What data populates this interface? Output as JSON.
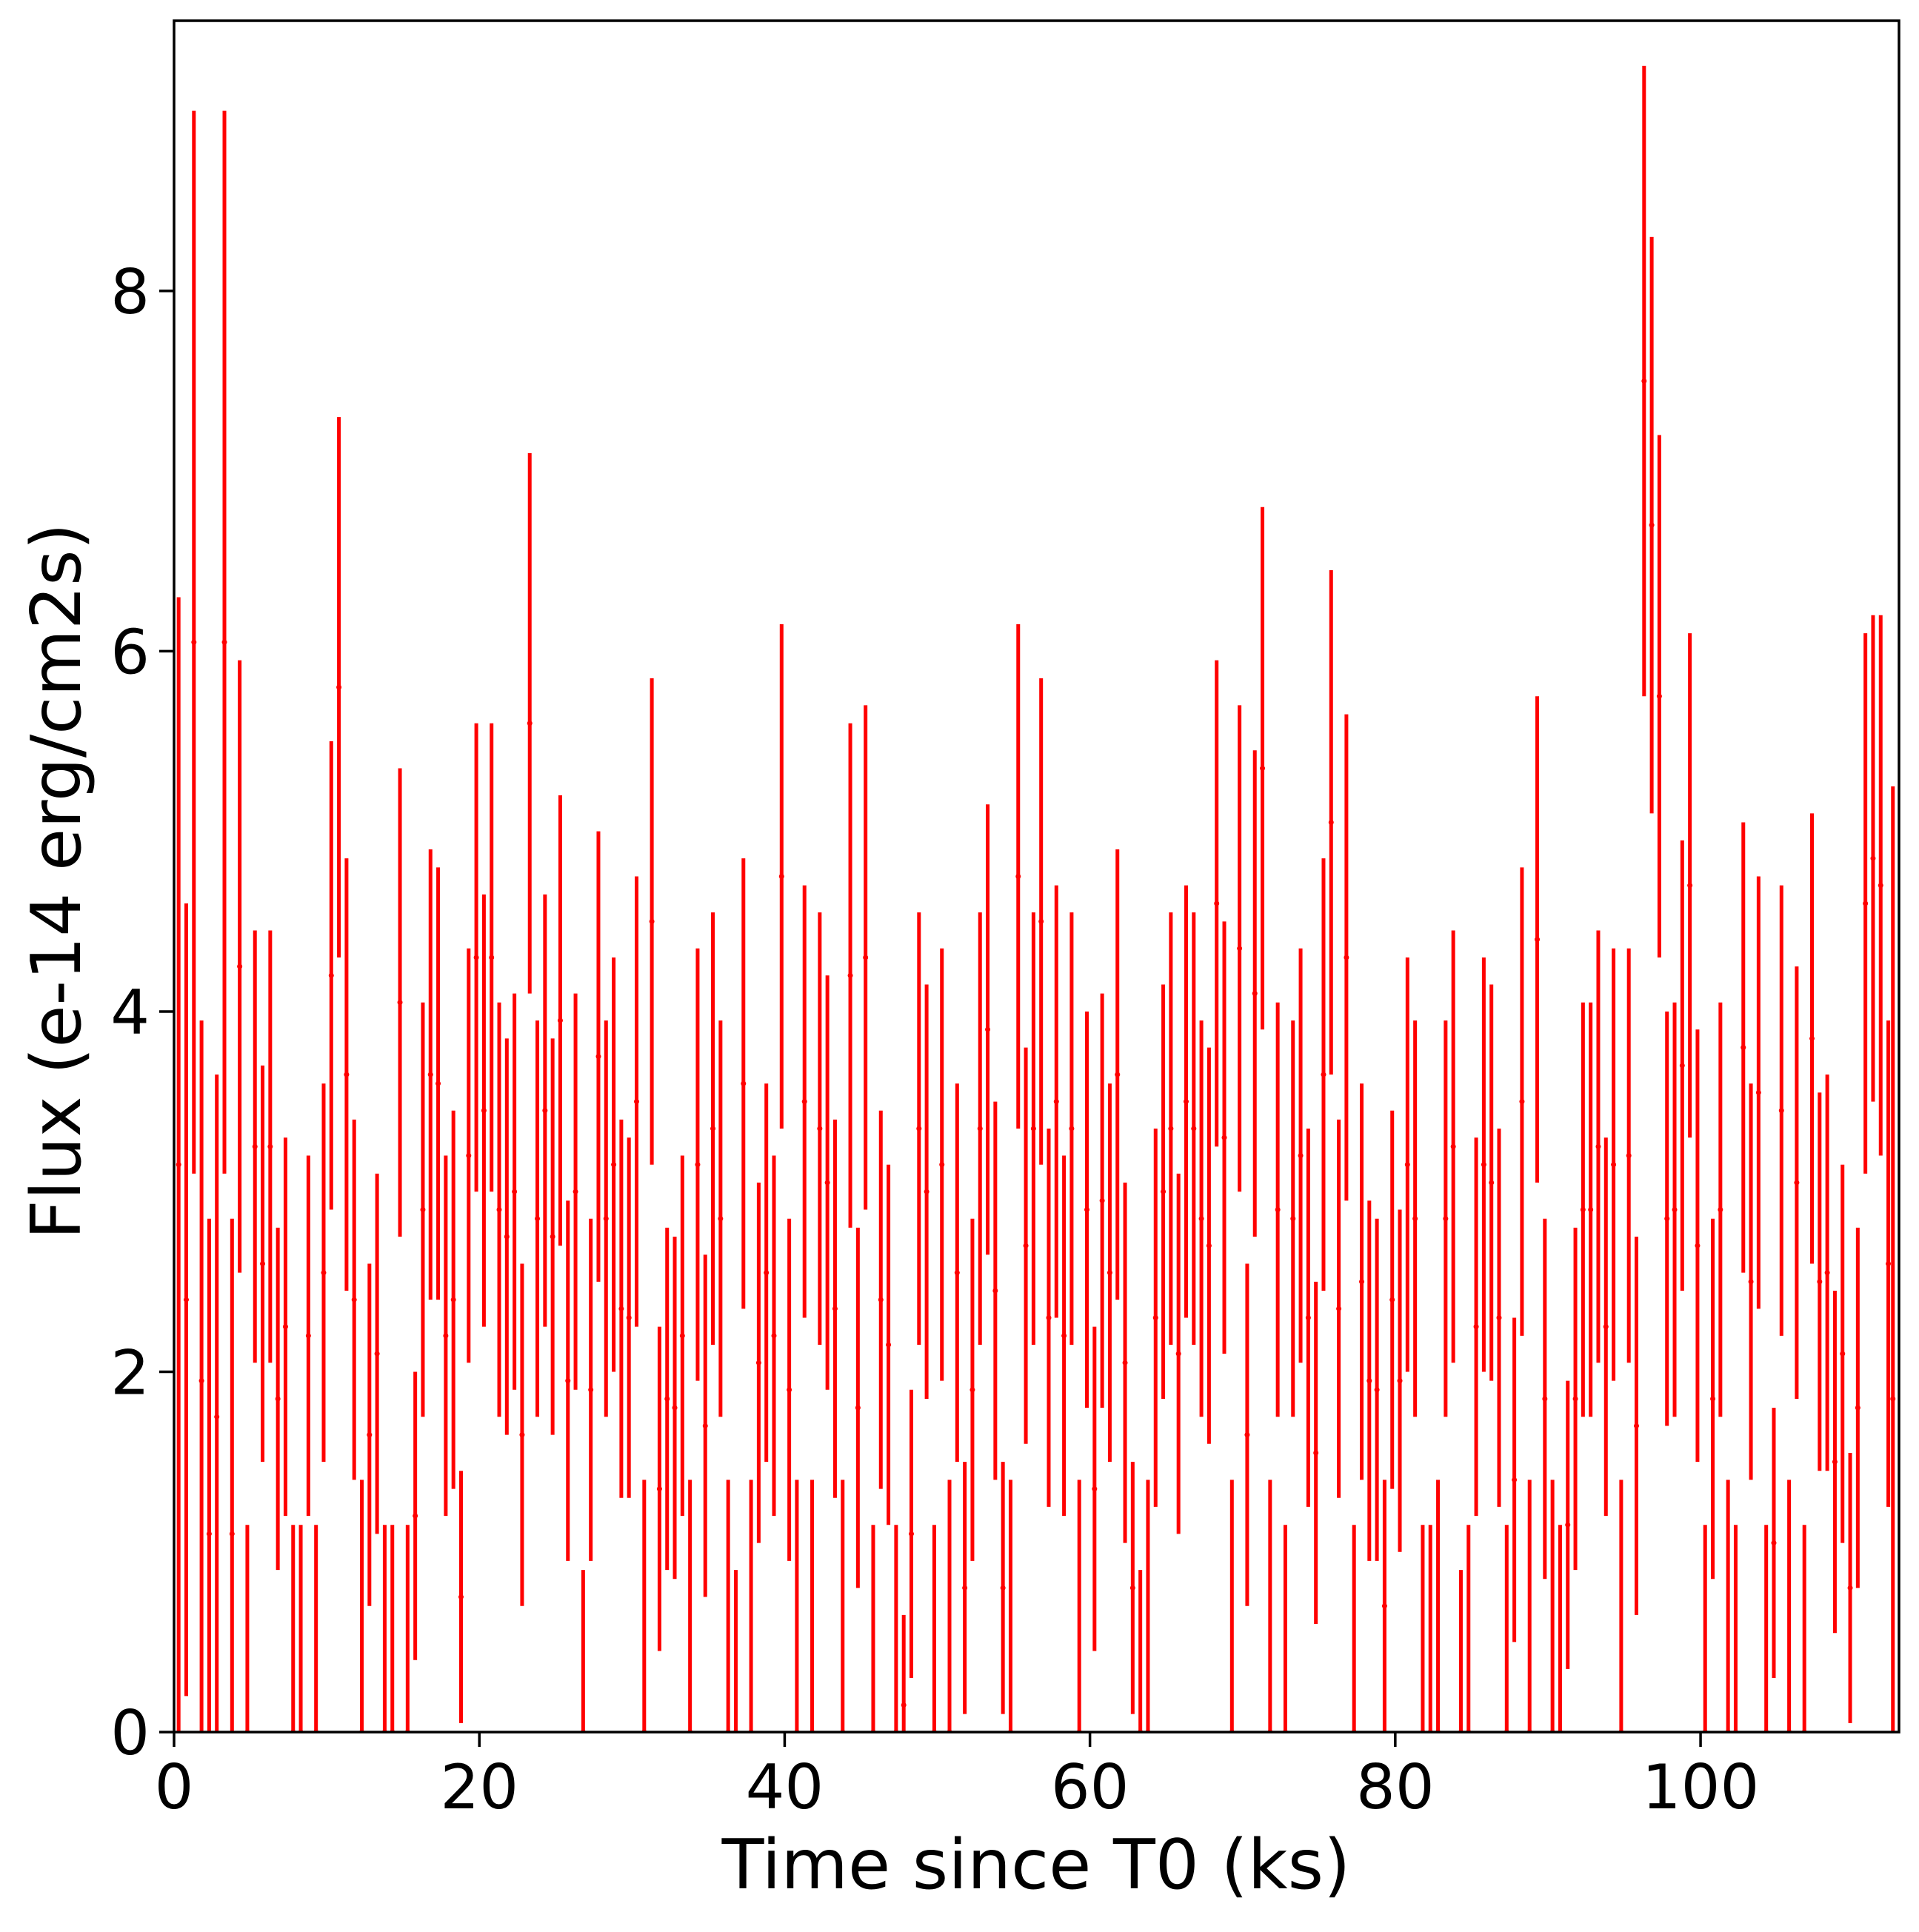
{
  "chart_data": {
    "type": "errorbar",
    "xlabel": "Time since T0 (ks)",
    "ylabel": "Flux (e-14 erg/cm2s)",
    "xlim": [
      0,
      113
    ],
    "ylim": [
      0,
      9.5
    ],
    "xticks": [
      0,
      20,
      40,
      60,
      80,
      100
    ],
    "yticks": [
      0,
      2,
      4,
      6,
      8
    ],
    "grid": false,
    "series": [
      {
        "color": "#ff0000",
        "x": [
          0.3,
          0.8,
          1.3,
          1.8,
          2.3,
          2.8,
          3.3,
          3.8,
          4.3,
          4.8,
          5.3,
          5.8,
          6.3,
          6.8,
          7.3,
          7.8,
          8.3,
          8.8,
          9.3,
          9.8,
          10.3,
          10.8,
          11.3,
          11.8,
          12.3,
          12.8,
          13.3,
          13.8,
          14.3,
          14.8,
          15.3,
          15.8,
          16.3,
          16.8,
          17.3,
          17.8,
          18.3,
          18.8,
          19.3,
          19.8,
          20.3,
          20.8,
          21.3,
          21.8,
          22.3,
          22.8,
          23.3,
          23.8,
          24.3,
          24.8,
          25.3,
          25.8,
          26.3,
          26.8,
          27.3,
          27.8,
          28.3,
          28.8,
          29.3,
          29.8,
          30.3,
          30.8,
          31.3,
          31.8,
          32.3,
          32.8,
          33.3,
          33.8,
          34.3,
          34.8,
          35.3,
          35.8,
          36.3,
          36.8,
          37.3,
          37.8,
          38.3,
          38.8,
          39.3,
          39.8,
          40.3,
          40.8,
          41.3,
          41.8,
          42.3,
          42.8,
          43.3,
          43.8,
          44.3,
          44.8,
          45.3,
          45.8,
          46.3,
          46.8,
          47.3,
          47.8,
          48.3,
          48.8,
          49.3,
          49.8,
          50.3,
          50.8,
          51.3,
          51.8,
          52.3,
          52.8,
          53.3,
          53.8,
          54.3,
          54.8,
          55.3,
          55.8,
          56.3,
          56.8,
          57.3,
          57.8,
          58.3,
          58.8,
          59.3,
          59.8,
          60.3,
          60.8,
          61.3,
          61.8,
          62.3,
          62.8,
          63.3,
          63.8,
          64.3,
          64.8,
          65.3,
          65.8,
          66.3,
          66.8,
          67.3,
          67.8,
          68.3,
          68.8,
          69.3,
          69.8,
          70.3,
          70.8,
          71.3,
          71.8,
          72.3,
          72.8,
          73.3,
          73.8,
          74.3,
          74.8,
          75.3,
          75.8,
          76.3,
          76.8,
          77.3,
          77.8,
          78.3,
          78.8,
          79.3,
          79.8,
          80.3,
          80.8,
          81.3,
          81.8,
          82.3,
          82.8,
          83.3,
          83.8,
          84.3,
          84.8,
          85.3,
          85.8,
          86.3,
          86.8,
          87.3,
          87.8,
          88.3,
          88.8,
          89.3,
          89.8,
          90.3,
          90.8,
          91.3,
          91.8,
          92.3,
          92.8,
          93.3,
          93.8,
          94.3,
          94.8,
          95.3,
          95.8,
          96.3,
          96.8,
          97.3,
          97.8,
          98.3,
          98.8,
          99.3,
          99.8,
          100.3,
          100.8,
          101.3,
          101.8,
          102.3,
          102.8,
          103.3,
          103.8,
          104.3,
          104.8,
          105.3,
          105.8,
          106.3,
          106.8,
          107.3,
          107.8,
          108.3,
          108.8,
          109.3,
          109.8,
          110.3,
          110.8,
          111.3,
          111.8,
          112.3,
          112.6
        ],
        "values": [
          3.15,
          2.4,
          6.05,
          1.95,
          1.1,
          1.75,
          6.05,
          1.1,
          4.25,
          0,
          3.25,
          2.6,
          3.25,
          1.85,
          2.25,
          0,
          0,
          2.2,
          0,
          2.55,
          4.2,
          5.8,
          3.65,
          2.4,
          0,
          1.65,
          2.1,
          0,
          0,
          4.05,
          0,
          1.2,
          2.9,
          3.65,
          3.6,
          2.2,
          2.4,
          0.75,
          3.2,
          4.3,
          3.45,
          4.3,
          2.9,
          2.75,
          3.0,
          1.65,
          5.6,
          2.85,
          3.45,
          2.75,
          3.95,
          1.95,
          3.0,
          0,
          1.9,
          3.75,
          2.85,
          3.15,
          2.35,
          2.3,
          3.5,
          0,
          4.5,
          1.35,
          1.85,
          1.8,
          2.2,
          0,
          3.15,
          1.7,
          3.35,
          2.85,
          0,
          0,
          3.6,
          0,
          2.05,
          2.55,
          2.2,
          4.75,
          1.9,
          0,
          3.5,
          0,
          3.35,
          3.05,
          2.35,
          0,
          4.2,
          1.8,
          4.3,
          0,
          2.4,
          2.15,
          0,
          0.15,
          1.1,
          3.35,
          3.0,
          0,
          3.15,
          0,
          2.55,
          0.8,
          1.9,
          3.35,
          3.9,
          2.45,
          0.8,
          0,
          4.75,
          2.7,
          3.35,
          4.5,
          2.3,
          3.5,
          2.2,
          3.35,
          0,
          2.9,
          1.35,
          2.95,
          2.55,
          3.65,
          2.05,
          0.8,
          0,
          0,
          2.3,
          3.0,
          3.35,
          2.1,
          3.5,
          3.35,
          2.85,
          2.7,
          4.6,
          3.3,
          0,
          4.35,
          1.65,
          4.1,
          5.35,
          0,
          2.9,
          0,
          2.85,
          3.2,
          2.3,
          1.55,
          3.65,
          5.05,
          2.35,
          4.3,
          0,
          2.5,
          1.95,
          1.9,
          0.7,
          2.4,
          1.95,
          3.15,
          2.85,
          0,
          0,
          0,
          2.85,
          3.25,
          0,
          0,
          2.25,
          3.15,
          3.05,
          2.3,
          0,
          1.4,
          3.5,
          0,
          4.4,
          1.85,
          0,
          0,
          1.15,
          1.85,
          2.9,
          2.9,
          3.25,
          2.25,
          3.15,
          0,
          3.2,
          1.7,
          7.5,
          6.7,
          5.75,
          2.85,
          2.9,
          3.7,
          4.7,
          2.7,
          0,
          1.85,
          2.9,
          0,
          0,
          3.8,
          2.5,
          3.55,
          0,
          1.05,
          3.45,
          0,
          3.05,
          0,
          3.85,
          2.5,
          2.55,
          1.5,
          2.1,
          0.8,
          1.8,
          4.6,
          4.85,
          4.7,
          2.6,
          1.85
        ],
        "errors": [
          3.15,
          2.2,
          2.95,
          2.0,
          1.75,
          1.9,
          2.95,
          1.75,
          1.7,
          1.15,
          1.2,
          1.1,
          1.2,
          0.95,
          1.05,
          1.15,
          1.15,
          1.0,
          1.15,
          1.05,
          1.3,
          1.5,
          1.2,
          1.0,
          1.4,
          0.95,
          1.0,
          1.15,
          1.15,
          1.3,
          1.15,
          0.8,
          1.15,
          1.25,
          1.2,
          1.0,
          1.05,
          0.7,
          1.15,
          1.3,
          1.2,
          1.3,
          1.15,
          1.1,
          1.1,
          0.95,
          1.5,
          1.1,
          1.2,
          1.1,
          1.25,
          1.0,
          1.1,
          0.9,
          0.95,
          1.25,
          1.1,
          1.15,
          1.05,
          1.0,
          1.25,
          1.4,
          1.35,
          0.9,
          0.95,
          0.95,
          1.0,
          1.4,
          1.2,
          0.95,
          1.2,
          1.1,
          1.4,
          0.9,
          1.25,
          1.4,
          1.0,
          1.05,
          1.0,
          1.4,
          0.95,
          1.4,
          1.2,
          1.4,
          1.2,
          1.15,
          1.05,
          1.4,
          1.4,
          1.0,
          1.4,
          1.15,
          1.05,
          1.0,
          1.15,
          0.5,
          0.8,
          1.2,
          1.15,
          1.15,
          1.2,
          1.4,
          1.05,
          0.7,
          0.95,
          1.2,
          1.25,
          1.05,
          0.7,
          1.4,
          1.4,
          1.1,
          1.2,
          1.35,
          1.05,
          1.2,
          1.0,
          1.2,
          1.4,
          1.1,
          0.9,
          1.15,
          1.05,
          1.25,
          1.0,
          0.7,
          0.9,
          1.4,
          1.05,
          1.15,
          1.2,
          1.0,
          1.2,
          1.2,
          1.1,
          1.1,
          1.35,
          1.2,
          1.4,
          1.35,
          0.95,
          1.35,
          1.45,
          1.4,
          1.15,
          1.15,
          1.1,
          1.15,
          1.05,
          0.95,
          1.2,
          1.4,
          1.05,
          1.35,
          1.15,
          1.1,
          1.0,
          0.95,
          0.7,
          1.05,
          0.95,
          1.15,
          1.1,
          1.15,
          1.15,
          1.4,
          1.1,
          1.2,
          0.9,
          1.15,
          1.05,
          1.15,
          1.1,
          1.05,
          1.15,
          0.9,
          1.3,
          1.4,
          1.35,
          1.0,
          1.4,
          1.15,
          0.8,
          0.95,
          1.15,
          1.15,
          1.2,
          1.05,
          1.2,
          1.4,
          1.15,
          1.05,
          1.75,
          1.6,
          1.45,
          1.15,
          1.15,
          1.25,
          1.4,
          1.2,
          1.15,
          1.0,
          1.15,
          1.4,
          1.15,
          1.25,
          1.1,
          1.2,
          1.15,
          0.75,
          1.25,
          1.4,
          1.2,
          1.15,
          1.25,
          1.05,
          1.1,
          0.95,
          1.05,
          0.75,
          1.0,
          1.5,
          1.35,
          1.5,
          1.35,
          3.4
        ]
      }
    ]
  }
}
